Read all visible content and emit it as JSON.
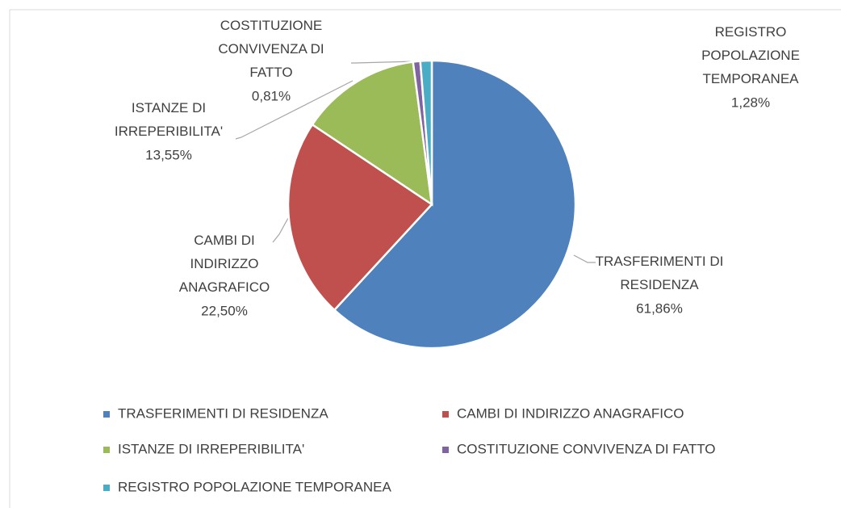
{
  "chart_data": {
    "type": "pie",
    "categories": [
      "TRASFERIMENTI DI RESIDENZA",
      "CAMBI DI INDIRIZZO ANAGRAFICO",
      "ISTANZE DI IRREPERIBILITA'",
      "COSTITUZIONE CONVIVENZA DI FATTO",
      "REGISTRO POPOLAZIONE TEMPORANEA"
    ],
    "values": [
      61.86,
      22.5,
      13.55,
      0.81,
      1.28
    ],
    "value_labels": [
      "61,86%",
      "22,50%",
      "13,55%",
      "0,81%",
      "1,28%"
    ],
    "colors": [
      "#4f81bd",
      "#c0504d",
      "#9bbb59",
      "#8064a2",
      "#4bacc6"
    ],
    "legend": "bottom"
  }
}
